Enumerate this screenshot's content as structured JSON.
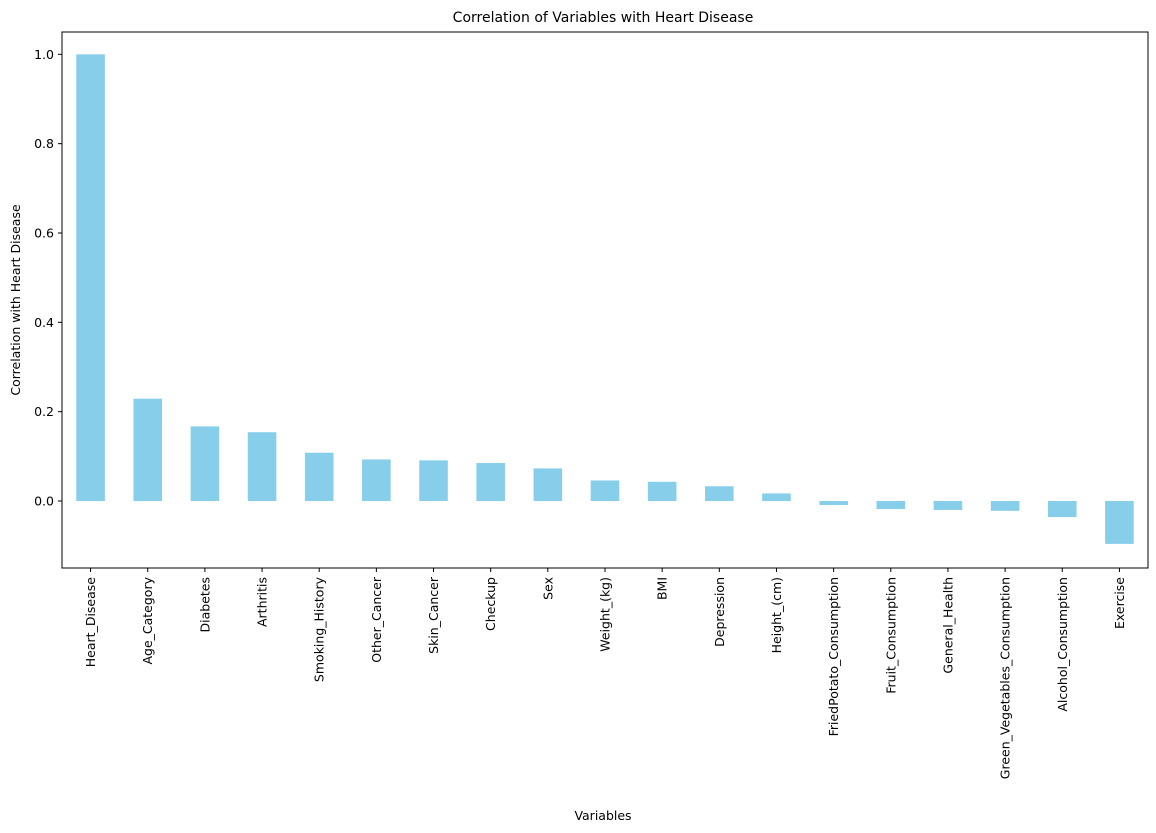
{
  "chart_data": {
    "type": "bar",
    "title": "Correlation of Variables with Heart Disease",
    "xlabel": "Variables",
    "ylabel": "Correlation with Heart Disease",
    "categories": [
      "Heart_Disease",
      "Age_Category",
      "Diabetes",
      "Arthritis",
      "Smoking_History",
      "Other_Cancer",
      "Skin_Cancer",
      "Checkup",
      "Sex",
      "Weight_(kg)",
      "BMI",
      "Depression",
      "Height_(cm)",
      "FriedPotato_Consumption",
      "Fruit_Consumption",
      "General_Health",
      "Green_Vegetables_Consumption",
      "Alcohol_Consumption",
      "Exercise"
    ],
    "values": [
      1.0,
      0.229,
      0.167,
      0.154,
      0.108,
      0.093,
      0.091,
      0.085,
      0.073,
      0.046,
      0.043,
      0.033,
      0.017,
      -0.009,
      -0.018,
      -0.02,
      -0.022,
      -0.036,
      -0.096
    ],
    "ylim": [
      -0.15,
      1.05
    ],
    "yticks": [
      "0.0",
      "0.2",
      "0.4",
      "0.6",
      "0.8",
      "1.0"
    ],
    "bar_color": "#87ceeb",
    "grid": false,
    "legend": "none"
  }
}
